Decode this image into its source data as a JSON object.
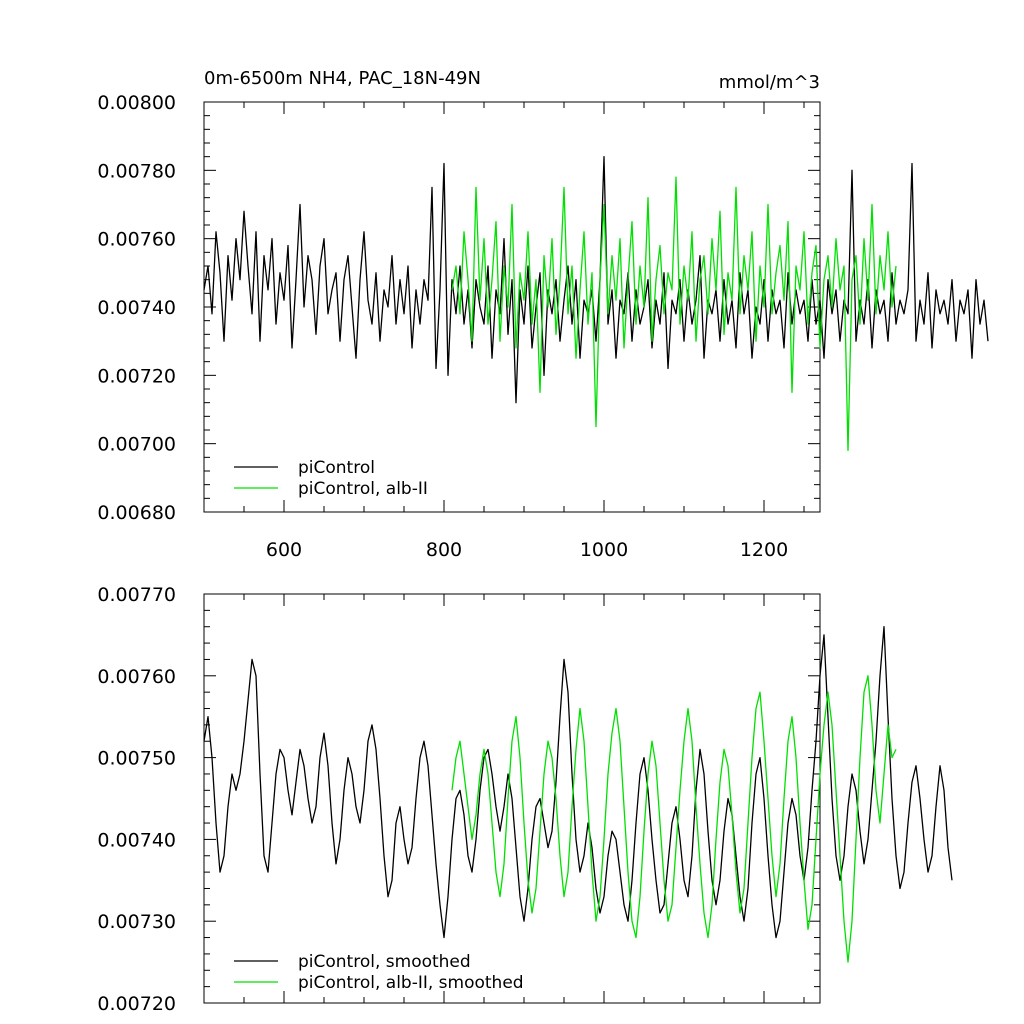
{
  "chart_data": [
    {
      "type": "line",
      "title": "0m-6500m NH4, PAC_18N-49N",
      "units": "mmol/m^3",
      "xlim": [
        500,
        1270
      ],
      "ylim": [
        0.0068,
        0.008
      ],
      "xticks": [
        "600",
        "800",
        "1000",
        "1200"
      ],
      "yticks": [
        "0.00680",
        "0.00700",
        "0.00720",
        "0.00740",
        "0.00760",
        "0.00780",
        "0.00800"
      ],
      "legend_position": "lower-left",
      "series": [
        {
          "name": "piControl",
          "color": "#000000",
          "x_start": 500,
          "x_step": 5,
          "values": [
            0.00745,
            0.00752,
            0.00738,
            0.00762,
            0.0075,
            0.0073,
            0.00755,
            0.00742,
            0.0076,
            0.00748,
            0.00768,
            0.00752,
            0.00738,
            0.00762,
            0.0073,
            0.00755,
            0.00745,
            0.0076,
            0.00735,
            0.0075,
            0.00742,
            0.00758,
            0.00728,
            0.00748,
            0.0077,
            0.0074,
            0.00755,
            0.00748,
            0.00732,
            0.00752,
            0.0076,
            0.00738,
            0.00745,
            0.0075,
            0.0073,
            0.00748,
            0.00755,
            0.0074,
            0.00725,
            0.00748,
            0.00762,
            0.00742,
            0.00735,
            0.0075,
            0.0073,
            0.00745,
            0.0074,
            0.00755,
            0.00735,
            0.00748,
            0.00738,
            0.00752,
            0.00728,
            0.00745,
            0.00735,
            0.00748,
            0.00742,
            0.00775,
            0.00722,
            0.00745,
            0.00782,
            0.0072,
            0.00748,
            0.00738,
            0.00752,
            0.00735,
            0.00745,
            0.00728,
            0.00748,
            0.0074,
            0.00735,
            0.00752,
            0.00725,
            0.00745,
            0.00738,
            0.0076,
            0.00732,
            0.00748,
            0.00712,
            0.00745,
            0.00735,
            0.00752,
            0.00728,
            0.0074,
            0.0075,
            0.0072,
            0.00745,
            0.00738,
            0.00748,
            0.0073,
            0.00742,
            0.00752,
            0.00735,
            0.00748,
            0.00725,
            0.00742,
            0.00738,
            0.00745,
            0.0073,
            0.00748,
            0.00784,
            0.00735,
            0.00745,
            0.00725,
            0.00742,
            0.00738,
            0.0075,
            0.0073,
            0.00745,
            0.00735,
            0.0074,
            0.00748,
            0.00728,
            0.00742,
            0.00735,
            0.0075,
            0.00722,
            0.00742,
            0.00738,
            0.00748,
            0.0073,
            0.00745,
            0.00735,
            0.00742,
            0.00755,
            0.00725,
            0.00742,
            0.00738,
            0.00745,
            0.0073,
            0.00748,
            0.00735,
            0.00742,
            0.00728,
            0.0075,
            0.00738,
            0.00745,
            0.00725,
            0.0074,
            0.00735,
            0.00748,
            0.0073,
            0.00745,
            0.00738,
            0.00742,
            0.00728,
            0.0075,
            0.00735,
            0.00745,
            0.00738,
            0.00742,
            0.0073,
            0.00748,
            0.00735,
            0.00742,
            0.00725,
            0.00748,
            0.00738,
            0.00745,
            0.0073,
            0.00742,
            0.00738,
            0.0078,
            0.0073,
            0.00742,
            0.00735,
            0.00748,
            0.00728,
            0.00745,
            0.00738,
            0.00742,
            0.0073,
            0.0075,
            0.00735,
            0.00742,
            0.00738,
            0.00745,
            0.00782,
            0.0073,
            0.00742,
            0.00735,
            0.0075,
            0.00728,
            0.00745,
            0.00738,
            0.00742,
            0.00735,
            0.00748,
            0.0073,
            0.00742,
            0.00738,
            0.00745,
            0.00725,
            0.00748,
            0.00735,
            0.00742,
            0.0073
          ]
        },
        {
          "name": "piControl, alb-II",
          "color": "#00e000",
          "x_start": 810,
          "x_step": 5,
          "values": [
            0.00745,
            0.00752,
            0.00738,
            0.00762,
            0.00748,
            0.0073,
            0.00775,
            0.00742,
            0.0076,
            0.00735,
            0.00748,
            0.00765,
            0.0073,
            0.00752,
            0.0074,
            0.0077,
            0.00728,
            0.0075,
            0.00742,
            0.00762,
            0.00735,
            0.00748,
            0.00715,
            0.00755,
            0.0074,
            0.0076,
            0.00732,
            0.00748,
            0.00775,
            0.00738,
            0.00752,
            0.00725,
            0.00745,
            0.00762,
            0.00735,
            0.0075,
            0.00705,
            0.00748,
            0.0077,
            0.00738,
            0.00755,
            0.00742,
            0.0076,
            0.00728,
            0.00748,
            0.00765,
            0.00735,
            0.00752,
            0.0074,
            0.00772,
            0.0073,
            0.00748,
            0.00758,
            0.00738,
            0.0075,
            0.00745,
            0.00778,
            0.00735,
            0.00752,
            0.00742,
            0.00762,
            0.0073,
            0.00748,
            0.00755,
            0.00738,
            0.0076,
            0.00745,
            0.00768,
            0.00732,
            0.0075,
            0.00742,
            0.00775,
            0.00738,
            0.00755,
            0.00745,
            0.00762,
            0.0073,
            0.00752,
            0.0074,
            0.0077,
            0.00738,
            0.0075,
            0.00758,
            0.00742,
            0.00765,
            0.00715,
            0.00752,
            0.00745,
            0.00762,
            0.00735,
            0.0075,
            0.00758,
            0.00728,
            0.00748,
            0.00755,
            0.0074,
            0.0076,
            0.00745,
            0.00752,
            0.00698,
            0.00748,
            0.00755,
            0.00735,
            0.0076,
            0.00742,
            0.0077,
            0.00738,
            0.00755,
            0.00745,
            0.00762,
            0.0074,
            0.00752
          ]
        }
      ]
    },
    {
      "type": "line",
      "title": "",
      "xlim": [
        500,
        1270
      ],
      "ylim": [
        0.0072,
        0.0077
      ],
      "yticks": [
        "0.00720",
        "0.00730",
        "0.00740",
        "0.00750",
        "0.00760",
        "0.00770"
      ],
      "legend_position": "lower-left",
      "series": [
        {
          "name": "piControl, smoothed",
          "color": "#000000",
          "x_start": 500,
          "x_step": 5,
          "values": [
            0.00752,
            0.00755,
            0.0075,
            0.00742,
            0.00736,
            0.00738,
            0.00744,
            0.00748,
            0.00746,
            0.00748,
            0.00752,
            0.00757,
            0.00762,
            0.0076,
            0.00748,
            0.00738,
            0.00736,
            0.00742,
            0.00748,
            0.00751,
            0.0075,
            0.00746,
            0.00743,
            0.00747,
            0.00751,
            0.00749,
            0.00745,
            0.00742,
            0.00744,
            0.0075,
            0.00753,
            0.00749,
            0.00742,
            0.00737,
            0.0074,
            0.00746,
            0.0075,
            0.00748,
            0.00744,
            0.00742,
            0.00746,
            0.00752,
            0.00754,
            0.00751,
            0.00745,
            0.00738,
            0.00733,
            0.00735,
            0.00742,
            0.00744,
            0.0074,
            0.00737,
            0.00739,
            0.00745,
            0.0075,
            0.00752,
            0.00749,
            0.00743,
            0.00737,
            0.00732,
            0.00728,
            0.00733,
            0.0074,
            0.00745,
            0.00746,
            0.00743,
            0.00738,
            0.00736,
            0.0074,
            0.00746,
            0.0075,
            0.00751,
            0.00748,
            0.00744,
            0.00741,
            0.00744,
            0.00748,
            0.00745,
            0.00739,
            0.00733,
            0.0073,
            0.00734,
            0.0074,
            0.00744,
            0.00745,
            0.00742,
            0.00739,
            0.00741,
            0.00747,
            0.00755,
            0.00762,
            0.00758,
            0.00748,
            0.0074,
            0.00736,
            0.00738,
            0.00742,
            0.00739,
            0.00734,
            0.00731,
            0.00733,
            0.00738,
            0.00741,
            0.0074,
            0.00736,
            0.00732,
            0.0073,
            0.00735,
            0.00742,
            0.00748,
            0.0075,
            0.00746,
            0.0074,
            0.00735,
            0.00731,
            0.00732,
            0.00737,
            0.00742,
            0.00744,
            0.0074,
            0.00735,
            0.00733,
            0.00738,
            0.00746,
            0.00751,
            0.00748,
            0.00741,
            0.00735,
            0.00732,
            0.00735,
            0.00741,
            0.00745,
            0.00743,
            0.00738,
            0.00733,
            0.0073,
            0.00734,
            0.00742,
            0.00748,
            0.0075,
            0.00745,
            0.00738,
            0.00732,
            0.00728,
            0.0073,
            0.00736,
            0.00742,
            0.00745,
            0.00743,
            0.00738,
            0.00735,
            0.00739,
            0.00746,
            0.00752,
            0.0076,
            0.00765,
            0.00755,
            0.00745,
            0.00738,
            0.00735,
            0.00738,
            0.00744,
            0.00748,
            0.00746,
            0.00741,
            0.00737,
            0.0074,
            0.00746,
            0.00752,
            0.0076,
            0.00766,
            0.00755,
            0.00745,
            0.00738,
            0.00734,
            0.00736,
            0.00742,
            0.00747,
            0.00749,
            0.00745,
            0.0074,
            0.00736,
            0.00738,
            0.00744,
            0.00749,
            0.00746,
            0.00739,
            0.00735
          ]
        },
        {
          "name": "piControl, alb-II, smoothed",
          "color": "#00e000",
          "x_start": 810,
          "x_step": 5,
          "values": [
            0.00746,
            0.0075,
            0.00752,
            0.00748,
            0.00744,
            0.0074,
            0.00743,
            0.00748,
            0.00751,
            0.00748,
            0.00742,
            0.00736,
            0.00733,
            0.00737,
            0.00745,
            0.00752,
            0.00755,
            0.0075,
            0.00742,
            0.00735,
            0.00731,
            0.00734,
            0.00741,
            0.00748,
            0.00752,
            0.0075,
            0.00745,
            0.00738,
            0.00733,
            0.00736,
            0.00744,
            0.00751,
            0.00756,
            0.00752,
            0.00744,
            0.00736,
            0.0073,
            0.00733,
            0.0074,
            0.00748,
            0.00753,
            0.00756,
            0.00752,
            0.00744,
            0.00736,
            0.0073,
            0.00728,
            0.00733,
            0.00741,
            0.00748,
            0.00752,
            0.00749,
            0.00742,
            0.00735,
            0.0073,
            0.00732,
            0.00739,
            0.00746,
            0.00752,
            0.00756,
            0.00752,
            0.00744,
            0.00737,
            0.00731,
            0.00728,
            0.00732,
            0.0074,
            0.00747,
            0.00751,
            0.00749,
            0.00743,
            0.00736,
            0.00731,
            0.00734,
            0.00742,
            0.0075,
            0.00756,
            0.00758,
            0.00752,
            0.00745,
            0.00738,
            0.00733,
            0.00737,
            0.00745,
            0.00752,
            0.00755,
            0.0075,
            0.00742,
            0.00735,
            0.00729,
            0.00732,
            0.0074,
            0.00748,
            0.00754,
            0.00758,
            0.00754,
            0.00746,
            0.00738,
            0.0073,
            0.00725,
            0.0073,
            0.0074,
            0.0075,
            0.00758,
            0.0076,
            0.00754,
            0.00746,
            0.00742,
            0.00748,
            0.00754,
            0.0075,
            0.00751
          ]
        }
      ]
    }
  ]
}
